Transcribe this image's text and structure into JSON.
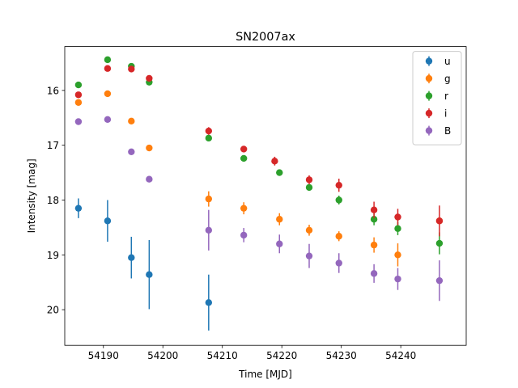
{
  "chart_data": {
    "type": "scatter",
    "title": "SN2007ax",
    "xlabel": "Time [MJD]",
    "ylabel": "Intensity [mag]",
    "xlim": [
      54183.5,
      54251.0
    ],
    "ylim": [
      20.65,
      15.2
    ],
    "y_inverted": true,
    "grid": false,
    "legend_position": "top-right",
    "x_ticks": [
      54190,
      54200,
      54210,
      54220,
      54230,
      54240
    ],
    "y_ticks": [
      16,
      17,
      18,
      19,
      20
    ],
    "series": [
      {
        "name": "u",
        "color": "#1f77b4",
        "x": [
          54185.8,
          54190.7,
          54194.7,
          54197.7,
          54207.7
        ],
        "y": [
          18.15,
          18.38,
          19.05,
          19.36,
          19.87
        ],
        "err": [
          0.18,
          0.38,
          0.38,
          0.63,
          0.51
        ]
      },
      {
        "name": "g",
        "color": "#ff7f0e",
        "x": [
          54185.8,
          54190.7,
          54194.7,
          54197.7,
          54207.7,
          54213.6,
          54219.6,
          54224.6,
          54229.6,
          54235.5,
          54239.5,
          54246.5
        ],
        "y": [
          16.22,
          16.06,
          16.56,
          17.05,
          17.98,
          18.15,
          18.35,
          18.55,
          18.66,
          18.82,
          19.0,
          18.38
        ],
        "err": [
          0.0,
          0.0,
          0.0,
          0.0,
          0.14,
          0.11,
          0.11,
          0.1,
          0.09,
          0.14,
          0.21,
          0.0
        ]
      },
      {
        "name": "r",
        "color": "#2ca02c",
        "x": [
          54185.8,
          54190.7,
          54194.7,
          54197.7,
          54207.7,
          54213.6,
          54219.6,
          54224.6,
          54229.6,
          54235.5,
          54239.5,
          54246.5
        ],
        "y": [
          15.9,
          15.44,
          15.56,
          15.85,
          16.87,
          17.24,
          17.5,
          17.77,
          18.0,
          18.35,
          18.52,
          18.79
        ],
        "err": [
          0.0,
          0.0,
          0.0,
          0.0,
          0.0,
          0.0,
          0.0,
          0.06,
          0.08,
          0.11,
          0.12,
          0.2
        ]
      },
      {
        "name": "i",
        "color": "#d62728",
        "x": [
          54185.8,
          54190.7,
          54194.7,
          54197.7,
          54207.7,
          54213.6,
          54218.8,
          54224.6,
          54229.6,
          54235.5,
          54239.5,
          54246.5
        ],
        "y": [
          16.08,
          15.6,
          15.61,
          15.78,
          16.74,
          17.07,
          17.29,
          17.63,
          17.73,
          18.18,
          18.31,
          18.38
        ],
        "err": [
          0.0,
          0.0,
          0.0,
          0.0,
          0.07,
          0.0,
          0.08,
          0.08,
          0.12,
          0.15,
          0.15,
          0.28
        ]
      },
      {
        "name": "B",
        "color": "#9467bd",
        "x": [
          54185.8,
          54190.7,
          54194.7,
          54197.7,
          54207.7,
          54213.6,
          54219.6,
          54224.6,
          54229.6,
          54235.5,
          54239.5,
          54246.5
        ],
        "y": [
          16.57,
          16.53,
          17.12,
          17.62,
          18.55,
          18.64,
          18.8,
          19.02,
          19.15,
          19.34,
          19.44,
          19.47
        ],
        "err": [
          0.0,
          0.0,
          0.0,
          0.0,
          0.37,
          0.13,
          0.17,
          0.22,
          0.18,
          0.17,
          0.2,
          0.37
        ]
      }
    ]
  }
}
